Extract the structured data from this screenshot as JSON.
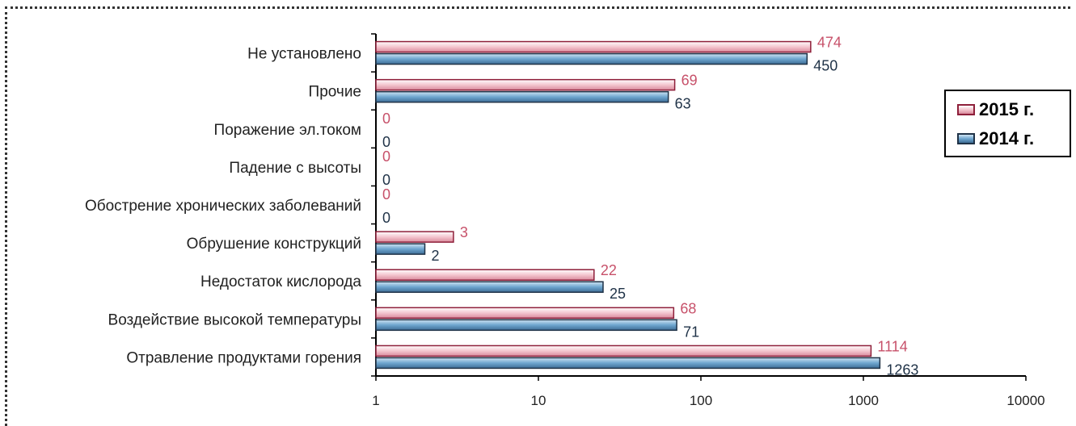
{
  "chart_data": {
    "type": "bar",
    "orientation": "horizontal",
    "x_scale": "log",
    "xlim": [
      1,
      10000
    ],
    "x_ticks": [
      "1",
      "10",
      "100",
      "1000",
      "10000"
    ],
    "categories": [
      "Не установлено",
      "Прочие",
      "Поражение эл.током",
      "Падение с высоты",
      "Обострение хронических заболеваний",
      "Обрушение конструкций",
      "Недостаток кислорода",
      "Воздействие высокой температуры",
      "Отравление продуктами горения"
    ],
    "series": [
      {
        "name": "2015 г.",
        "color": "#f4c6cf",
        "edge": "#8e1f3a",
        "label_color": "#c7516a",
        "values": [
          474,
          69,
          0,
          0,
          0,
          3,
          22,
          68,
          1114
        ]
      },
      {
        "name": "2014 г.",
        "color": "#6ea6cf",
        "edge": "#1f3247",
        "label_color": "#1f3247",
        "values": [
          450,
          63,
          0,
          0,
          0,
          2,
          25,
          71,
          1263
        ]
      }
    ],
    "legend_position": "right",
    "grid": false
  }
}
